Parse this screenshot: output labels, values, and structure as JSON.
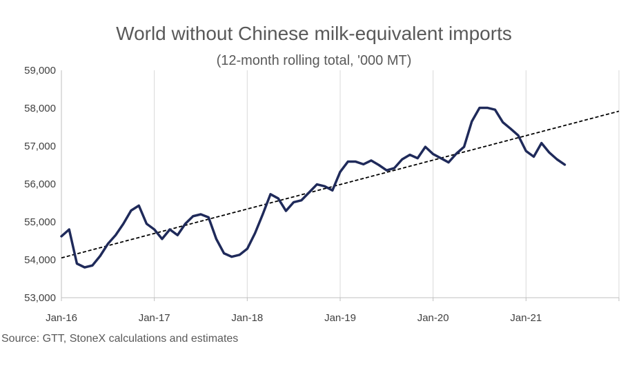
{
  "chart_data": {
    "type": "line",
    "title": "World without Chinese milk-equivalent imports",
    "subtitle": "(12-month rolling total, '000 MT)",
    "source": "Source: GTT, StoneX calculations and estimates",
    "ylim": [
      53000,
      59000
    ],
    "yticks": [
      53000,
      54000,
      55000,
      56000,
      57000,
      58000,
      59000
    ],
    "ytick_labels": [
      "53,000",
      "54,000",
      "55,000",
      "56,000",
      "57,000",
      "58,000",
      "59,000"
    ],
    "xlim": [
      "2016-01",
      "2022-01"
    ],
    "xtick_labels": [
      "Jan-16",
      "Jan-17",
      "Jan-18",
      "Jan-19",
      "Jan-20",
      "Jan-21"
    ],
    "grid": "vertical",
    "colors": {
      "series": "#1f2a5a",
      "trend": "#000000",
      "grid": "#d9d9d9"
    },
    "series": [
      {
        "x": [
          "2016-01",
          "2016-02",
          "2016-03",
          "2016-04",
          "2016-05",
          "2016-06",
          "2016-07",
          "2016-08",
          "2016-09",
          "2016-10",
          "2016-11",
          "2016-12",
          "2017-01",
          "2017-02",
          "2017-03",
          "2017-04",
          "2017-05",
          "2017-06",
          "2017-07",
          "2017-08",
          "2017-09",
          "2017-10",
          "2017-11",
          "2017-12",
          "2018-01",
          "2018-02",
          "2018-03",
          "2018-04",
          "2018-05",
          "2018-06",
          "2018-07",
          "2018-08",
          "2018-09",
          "2018-10",
          "2018-11",
          "2018-12",
          "2019-01",
          "2019-02",
          "2019-03",
          "2019-04",
          "2019-05",
          "2019-06",
          "2019-07",
          "2019-08",
          "2019-09",
          "2019-10",
          "2019-11",
          "2019-12",
          "2020-01",
          "2020-02",
          "2020-03",
          "2020-04",
          "2020-05",
          "2020-06",
          "2020-07",
          "2020-08",
          "2020-09",
          "2020-10",
          "2020-11",
          "2020-12",
          "2021-01",
          "2021-02",
          "2021-03",
          "2021-04",
          "2021-05",
          "2021-06"
        ],
        "values": [
          54620,
          54800,
          53900,
          53800,
          53850,
          54100,
          54420,
          54650,
          54950,
          55300,
          55430,
          54950,
          54800,
          54550,
          54800,
          54650,
          54950,
          55150,
          55200,
          55120,
          54550,
          54170,
          54080,
          54130,
          54290,
          54700,
          55200,
          55730,
          55620,
          55290,
          55520,
          55570,
          55780,
          55990,
          55940,
          55830,
          56320,
          56590,
          56590,
          56520,
          56620,
          56500,
          56360,
          56420,
          56650,
          56770,
          56680,
          56980,
          56790,
          56680,
          56570,
          56800,
          56980,
          57650,
          58010,
          58010,
          57960,
          57630,
          57460,
          57280,
          56870,
          56720,
          57080,
          56830,
          56650,
          56510
        ]
      }
    ],
    "trendline": {
      "x": [
        "2016-01",
        "2022-01"
      ],
      "values": [
        54050,
        57920
      ]
    }
  }
}
